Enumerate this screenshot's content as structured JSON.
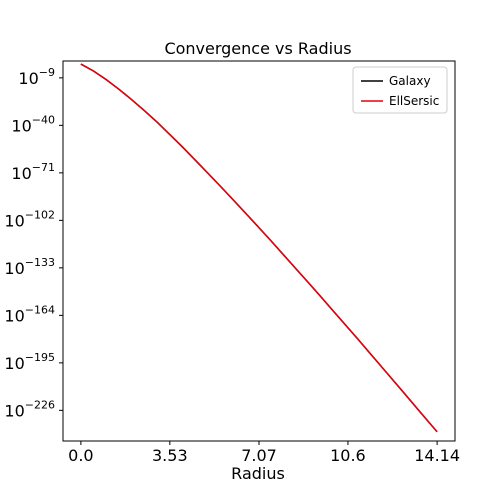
{
  "chart_data": {
    "type": "line",
    "title": "Convergence vs Radius",
    "xlabel": "Radius",
    "ylabel": "",
    "yscale": "log",
    "xlim": [
      -0.71,
      14.85
    ],
    "ylim_log10": [
      -246,
      2
    ],
    "x_ticks": [
      {
        "value": 0.0,
        "label": "0.0"
      },
      {
        "value": 3.53,
        "label": "3.53"
      },
      {
        "value": 7.07,
        "label": "7.07"
      },
      {
        "value": 10.6,
        "label": "10.6"
      },
      {
        "value": 14.14,
        "label": "14.14"
      }
    ],
    "y_ticks": [
      {
        "exp": -9,
        "base": "10",
        "sup": "−9"
      },
      {
        "exp": -40,
        "base": "10",
        "sup": "−40"
      },
      {
        "exp": -71,
        "base": "10",
        "sup": "−71"
      },
      {
        "exp": -102,
        "base": "10",
        "sup": "−102"
      },
      {
        "exp": -133,
        "base": "10",
        "sup": "−133"
      },
      {
        "exp": -164,
        "base": "10",
        "sup": "−164"
      },
      {
        "exp": -195,
        "base": "10",
        "sup": "−195"
      },
      {
        "exp": -226,
        "base": "10",
        "sup": "−226"
      }
    ],
    "grid": false,
    "legend_position": "top-right",
    "series": [
      {
        "name": "Galaxy",
        "color": "#000000",
        "x": [
          0.0,
          0.5,
          1.0,
          1.5,
          2.0,
          2.5,
          3.0,
          3.53,
          4.0,
          4.5,
          5.0,
          5.5,
          6.0,
          6.5,
          7.07,
          7.5,
          8.0,
          8.5,
          9.0,
          9.5,
          10.0,
          10.6,
          11.0,
          11.5,
          12.0,
          12.5,
          13.0,
          13.5,
          14.14
        ],
        "y_log10": [
          0.0,
          -4.5,
          -10.1,
          -16.3,
          -23.0,
          -30.1,
          -37.5,
          -46.0,
          -53.6,
          -62.0,
          -70.5,
          -79.1,
          -87.8,
          -96.6,
          -106.8,
          -114.5,
          -123.7,
          -132.9,
          -142.1,
          -151.4,
          -160.8,
          -172.1,
          -179.6,
          -189.2,
          -198.8,
          -208.4,
          -218.0,
          -227.7,
          -240.0
        ]
      },
      {
        "name": "EllSersic",
        "color": "#e8000b",
        "x": [
          0.0,
          0.5,
          1.0,
          1.5,
          2.0,
          2.5,
          3.0,
          3.53,
          4.0,
          4.5,
          5.0,
          5.5,
          6.0,
          6.5,
          7.07,
          7.5,
          8.0,
          8.5,
          9.0,
          9.5,
          10.0,
          10.6,
          11.0,
          11.5,
          12.0,
          12.5,
          13.0,
          13.5,
          14.14
        ],
        "y_log10": [
          0.0,
          -4.5,
          -10.1,
          -16.3,
          -23.0,
          -30.1,
          -37.5,
          -46.0,
          -53.6,
          -62.0,
          -70.5,
          -79.1,
          -87.8,
          -96.6,
          -106.8,
          -114.5,
          -123.7,
          -132.9,
          -142.1,
          -151.4,
          -160.8,
          -172.1,
          -179.6,
          -189.2,
          -198.8,
          -208.4,
          -218.0,
          -227.7,
          -240.0
        ]
      }
    ]
  }
}
